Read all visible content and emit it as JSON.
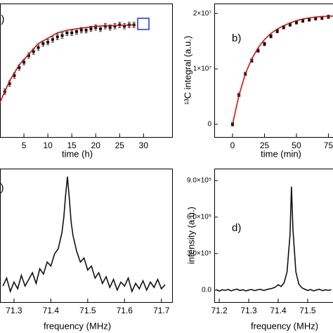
{
  "chart_data": [
    {
      "type": "scatter",
      "panel_label": "a)",
      "xlabel": "time (h)",
      "xlim": [
        0,
        34.5
      ],
      "ylim": [
        0,
        1
      ],
      "xticks": [
        5,
        10,
        15,
        20,
        25,
        30
      ],
      "series": [
        {
          "style": "markers",
          "color": "#111111",
          "x": [
            1,
            2,
            3,
            4,
            5,
            6,
            7,
            8,
            9,
            10,
            11,
            12,
            13,
            14,
            15,
            16,
            17,
            18,
            19,
            20,
            21,
            22,
            23,
            24,
            25,
            26,
            27,
            28
          ],
          "values": [
            0.34,
            0.4,
            0.46,
            0.52,
            0.56,
            0.61,
            0.64,
            0.67,
            0.7,
            0.71,
            0.73,
            0.75,
            0.76,
            0.78,
            0.78,
            0.79,
            0.8,
            0.8,
            0.81,
            0.82,
            0.81,
            0.83,
            0.82,
            0.83,
            0.84,
            0.83,
            0.84,
            0.84
          ],
          "errors": [
            0.02,
            0.02,
            0.02,
            0.02,
            0.02,
            0.02,
            0.02,
            0.02,
            0.02,
            0.02,
            0.02,
            0.02,
            0.02,
            0.02,
            0.02,
            0.02,
            0.02,
            0.02,
            0.02,
            0.02,
            0.02,
            0.02,
            0.02,
            0.02,
            0.02,
            0.02,
            0.02,
            0.02
          ]
        },
        {
          "style": "line",
          "color": "#cc1111",
          "x": [
            0,
            2,
            4,
            6,
            8,
            10,
            12,
            14,
            16,
            18,
            20,
            24,
            28
          ],
          "values": [
            0.26,
            0.42,
            0.54,
            0.62,
            0.7,
            0.74,
            0.78,
            0.8,
            0.81,
            0.82,
            0.83,
            0.835,
            0.84
          ]
        }
      ]
    },
    {
      "type": "scatter",
      "panel_label": "b)",
      "xlabel": "time (min)",
      "ylabel": "¹³C integral (a.u.)",
      "xlim": [
        -14.3,
        78.6
      ],
      "ylim": [
        -2300000,
        21800000
      ],
      "xticks": [
        0,
        25,
        50,
        75
      ],
      "yticks": [
        0,
        {
          "value": 10000000,
          "label": "1×10⁷"
        },
        {
          "value": 20000000,
          "label": "2×10⁷"
        }
      ],
      "series": [
        {
          "style": "markers",
          "color": "#111111",
          "x": [
            0,
            5,
            10,
            15,
            20,
            25,
            30,
            35,
            40,
            45,
            50,
            55,
            60,
            65,
            70,
            75
          ],
          "values": [
            0,
            5300000,
            9100000,
            11500000,
            13300000,
            14500000,
            15900000,
            16800000,
            17500000,
            18000000,
            18400000,
            18700000,
            18900000,
            19100000,
            19200000,
            19400000
          ],
          "errors": [
            300000,
            300000,
            300000,
            300000,
            300000,
            300000,
            300000,
            300000,
            300000,
            300000,
            300000,
            300000,
            300000,
            300000,
            300000,
            300000
          ]
        },
        {
          "style": "line",
          "color": "#cc1111",
          "x": [
            0,
            5,
            10,
            15,
            20,
            25,
            30,
            35,
            40,
            45,
            50,
            55,
            60,
            65,
            70,
            75,
            80
          ],
          "values": [
            0,
            5200000,
            9100000,
            11800000,
            13800000,
            15300000,
            16400000,
            17200000,
            17800000,
            18300000,
            18700000,
            19000000,
            19200000,
            19350000,
            19450000,
            19500000,
            19550000
          ]
        }
      ]
    },
    {
      "type": "line",
      "panel_label": "c)",
      "xlabel": "frequency (MHz)",
      "xlim": [
        71.262,
        71.71
      ],
      "ylim": [
        0,
        1
      ],
      "xticks": [
        71.3,
        71.4,
        71.5,
        71.6,
        71.7
      ],
      "series": [
        {
          "style": "line",
          "color": "#111111",
          "x": [
            71.27,
            71.28,
            71.29,
            71.3,
            71.31,
            71.32,
            71.33,
            71.34,
            71.35,
            71.36,
            71.37,
            71.38,
            71.39,
            71.4,
            71.41,
            71.42,
            71.43,
            71.435,
            71.44,
            71.445,
            71.45,
            71.455,
            71.46,
            71.47,
            71.48,
            71.49,
            71.5,
            71.51,
            71.52,
            71.53,
            71.54,
            71.55,
            71.56,
            71.57,
            71.58,
            71.59,
            71.6,
            71.61,
            71.62,
            71.63,
            71.64,
            71.65,
            71.66,
            71.67,
            71.68,
            71.69,
            71.7,
            71.71
          ],
          "values": [
            0.12,
            0.18,
            0.08,
            0.15,
            0.1,
            0.2,
            0.12,
            0.17,
            0.22,
            0.14,
            0.25,
            0.21,
            0.3,
            0.27,
            0.36,
            0.4,
            0.52,
            0.63,
            0.8,
            0.94,
            0.78,
            0.6,
            0.5,
            0.38,
            0.3,
            0.33,
            0.24,
            0.27,
            0.18,
            0.22,
            0.14,
            0.19,
            0.11,
            0.17,
            0.09,
            0.15,
            0.12,
            0.18,
            0.08,
            0.14,
            0.1,
            0.16,
            0.09,
            0.15,
            0.11,
            0.17,
            0.1,
            0.13
          ]
        }
      ]
    },
    {
      "type": "line",
      "panel_label": "d)",
      "xlabel": "frequency (MHz)",
      "ylabel": "intensity (a.u.)",
      "xlim": [
        71.183,
        71.586
      ],
      "ylim": [
        -98000,
        998000
      ],
      "xticks": [
        71.2,
        71.3,
        71.4,
        71.5
      ],
      "yticks": [
        {
          "value": 0,
          "label": "0.0"
        },
        {
          "value": 300000,
          "label": "3.0×10⁵"
        },
        {
          "value": 600000,
          "label": "6.0×10⁵"
        },
        {
          "value": 900000,
          "label": "9.0×10⁵"
        }
      ],
      "series": [
        {
          "style": "line",
          "color": "#111111",
          "x": [
            71.19,
            71.2,
            71.21,
            71.22,
            71.23,
            71.24,
            71.25,
            71.26,
            71.27,
            71.28,
            71.29,
            71.3,
            71.31,
            71.32,
            71.33,
            71.34,
            71.35,
            71.36,
            71.37,
            71.38,
            71.39,
            71.4,
            71.41,
            71.42,
            71.43,
            71.44,
            71.445,
            71.45,
            71.46,
            71.47,
            71.48,
            71.49,
            71.5,
            71.51,
            71.52,
            71.53,
            71.54,
            71.55,
            71.56,
            71.57,
            71.58
          ],
          "values": [
            5000,
            -8000,
            3000,
            -2000,
            6000,
            -5000,
            2000,
            8000,
            -3000,
            4000,
            -6000,
            1000,
            5000,
            -4000,
            3000,
            7000,
            -2000,
            4000,
            10000,
            15000,
            25000,
            45000,
            30000,
            60000,
            150000,
            450000,
            850000,
            500000,
            150000,
            50000,
            20000,
            8000,
            -3000,
            5000,
            -6000,
            2000,
            7000,
            -4000,
            3000,
            -2000,
            4000
          ]
        }
      ]
    }
  ]
}
